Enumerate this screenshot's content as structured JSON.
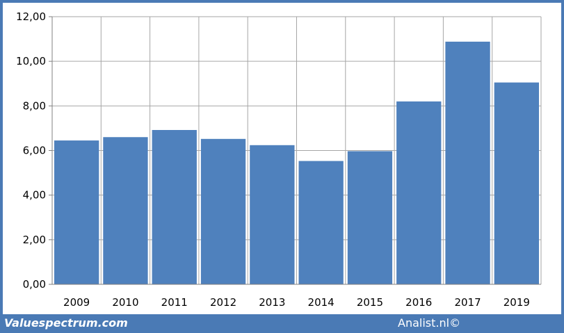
{
  "footer": {
    "left_brand": "Valuespectrum.com",
    "right_brand": "Analist.nl©"
  },
  "colors": {
    "frame": "#4a7ab5",
    "bar": "#4f81bd",
    "grid": "#a6a6a6"
  },
  "chart_data": {
    "type": "bar",
    "title": "",
    "xlabel": "",
    "ylabel": "",
    "categories": [
      "2009",
      "2010",
      "2011",
      "2012",
      "2013",
      "2014",
      "2015",
      "2016",
      "2017",
      "2019"
    ],
    "values": [
      6.45,
      6.6,
      6.92,
      6.52,
      6.24,
      5.53,
      5.97,
      8.2,
      10.88,
      9.05
    ],
    "ylim": [
      0,
      12
    ],
    "yticks": [
      "0,00",
      "2,00",
      "4,00",
      "6,00",
      "8,00",
      "10,00",
      "12,00"
    ],
    "grid": true,
    "legend": "none"
  }
}
